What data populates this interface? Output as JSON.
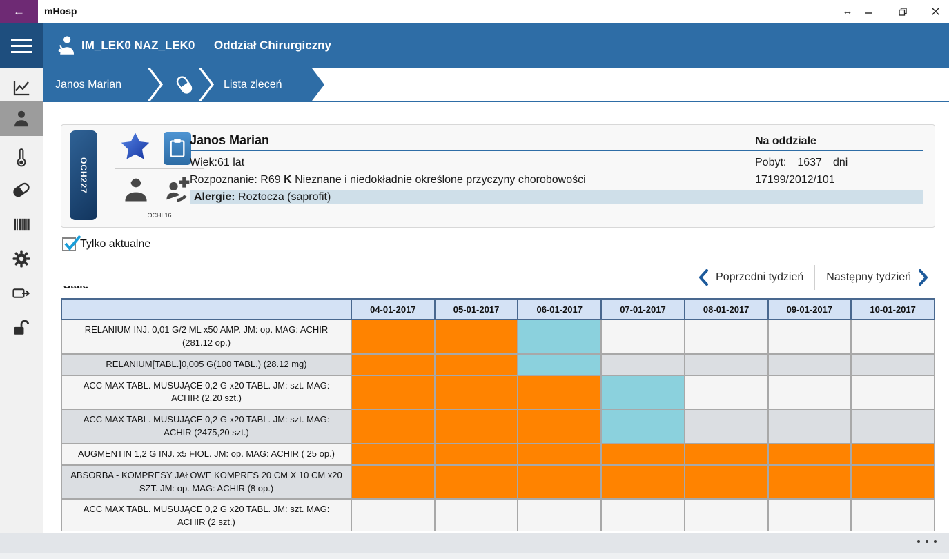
{
  "titlebar": {
    "app_title": "mHosp",
    "back_icon": "←",
    "resize_icon": "↔"
  },
  "header": {
    "user_name": "IM_LEK0 NAZ_LEK0",
    "department": "Oddział Chirurgiczny"
  },
  "breadcrumb": {
    "patient_segment": "Janos Marian",
    "current_segment": "Lista zleceń"
  },
  "sidebar": {
    "items": [
      "chart-icon",
      "patient-icon",
      "thermometer-icon",
      "pill-icon",
      "barcode-icon",
      "gear-icon",
      "transfer-icon",
      "unlock-icon"
    ],
    "selected": "patient-icon"
  },
  "patient_card": {
    "room_code": "OCH227",
    "sub_code": "OCHL16",
    "name": "Janos Marian",
    "age_label": "Wiek:",
    "age_value": "61 lat",
    "diagnosis_label": "Rozpoznanie:",
    "diagnosis_code": "R69",
    "diagnosis_marker": "K",
    "diagnosis_text": "Nieznane i niedokładnie określone przyczyny chorobowości",
    "allergy_label": "Alergie:",
    "allergy_value": "Roztocza (saprofit)",
    "ward_status": "Na oddziale",
    "stay_label": "Pobyt:",
    "stay_value": "1637",
    "stay_unit": "dni",
    "case_number": "17199/2012/101"
  },
  "filter": {
    "only_current_label": "Tylko aktualne",
    "checked": true
  },
  "week_nav": {
    "previous_label": "Poprzedni tydzień",
    "next_label": "Następny tydzień"
  },
  "section_label": "Stałe",
  "schedule": {
    "dates": [
      "04-01-2017",
      "05-01-2017",
      "06-01-2017",
      "07-01-2017",
      "08-01-2017",
      "09-01-2017",
      "10-01-2017"
    ],
    "rows": [
      {
        "name": "RELANIUM INJ. 0,01 G/2 ML x50 AMP. JM: op. MAG: ACHIR (281.12 op.)",
        "cells": [
          "orange",
          "orange",
          "teal",
          "",
          "",
          "",
          ""
        ]
      },
      {
        "name": "RELANIUM[TABL.]0,005 G(100 TABL.) (28.12 mg)",
        "cells": [
          "orange",
          "orange",
          "teal",
          "",
          "",
          "",
          ""
        ]
      },
      {
        "name": "ACC MAX TABL. MUSUJĄCE 0,2 G x20 TABL. JM: szt. MAG: ACHIR (2,20 szt.)",
        "cells": [
          "orange",
          "orange",
          "orange",
          "teal",
          "",
          "",
          ""
        ]
      },
      {
        "name": "ACC MAX TABL. MUSUJĄCE 0,2 G x20 TABL. JM: szt. MAG: ACHIR (2475,20 szt.)",
        "cells": [
          "orange",
          "orange",
          "orange",
          "teal",
          "",
          "",
          ""
        ]
      },
      {
        "name": "AUGMENTIN 1,2 G INJ.  x5 FIOL. JM: op. MAG: ACHIR ( 25 op.)",
        "cells": [
          "orange",
          "orange",
          "orange",
          "orange",
          "orange",
          "orange",
          "orange"
        ]
      },
      {
        "name": "ABSORBA - KOMPRESY JAŁOWE KOMPRES 20 CM X 10 CM x20 SZT. JM: op. MAG: ACHIR (8 op.)",
        "cells": [
          "orange",
          "orange",
          "orange",
          "orange",
          "orange",
          "orange",
          "orange"
        ]
      },
      {
        "name": "ACC MAX TABL. MUSUJĄCE 0,2 G x20 TABL. JM: szt. MAG: ACHIR (2 szt.)",
        "cells": [
          "",
          "",
          "",
          "",
          "",
          "",
          ""
        ]
      }
    ],
    "cell_colors": {
      "orange": "#ff8300",
      "teal": "#8bd1dd"
    }
  },
  "colors": {
    "header_blue": "#2e6da6",
    "dark_blue": "#1e4e7e",
    "back_button_purple": "#6e2a74",
    "sidebar_selected": "#9c9c9c",
    "allergy_strip": "#cfdfe9",
    "table_header_bg": "#d4e2f5"
  }
}
